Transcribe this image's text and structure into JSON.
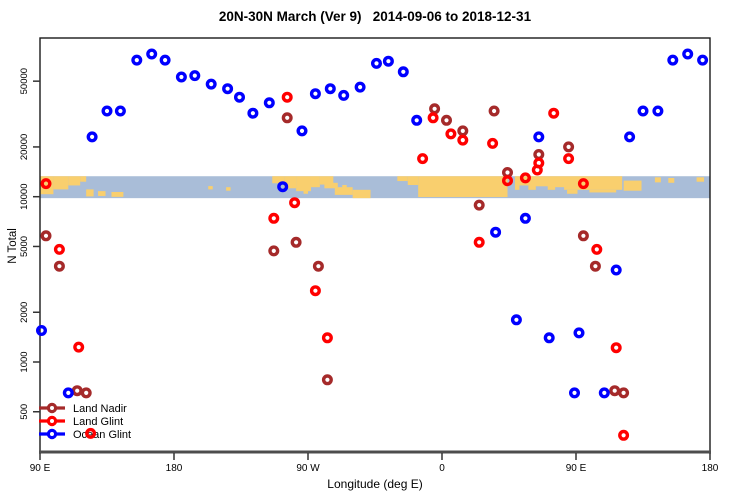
{
  "title": "20N-30N March (Ver 9)   2014-09-06 to 2018-12-31",
  "chart_data": {
    "type": "scatter",
    "title": "20N-30N March (Ver 9)   2014-09-06 to 2018-12-31",
    "xlabel": "Longitude (deg E)",
    "ylabel": "N Total",
    "x_axis": {
      "note": "longitude wraps eastward starting at 90E",
      "range": [
        90,
        540
      ],
      "ticks": [
        {
          "value": 90,
          "label": "90 E"
        },
        {
          "value": 180,
          "label": "180"
        },
        {
          "value": 270,
          "label": "90 W"
        },
        {
          "value": 360,
          "label": "0"
        },
        {
          "value": 450,
          "label": "90 E"
        },
        {
          "value": 540,
          "label": "180"
        }
      ]
    },
    "y_axis": {
      "scale": "log",
      "range": [
        300,
        90000
      ],
      "ticks": [
        500,
        1000,
        2000,
        5000,
        10000,
        20000,
        50000
      ]
    },
    "legend": {
      "position": "bottom-left",
      "entries": [
        "Land Nadir",
        "Land Glint",
        "Ocean Glint"
      ]
    },
    "series": [
      {
        "name": "Land Nadir",
        "color": "#A52A2A",
        "points": [
          [
            94,
            5800
          ],
          [
            103,
            3800
          ],
          [
            115,
            670
          ],
          [
            121,
            650
          ],
          [
            256,
            30000
          ],
          [
            247,
            4700
          ],
          [
            262,
            5300
          ],
          [
            277,
            3800
          ],
          [
            283,
            780
          ],
          [
            355,
            34000
          ],
          [
            363,
            29000
          ],
          [
            374,
            25000
          ],
          [
            385,
            8900
          ],
          [
            395,
            33000
          ],
          [
            404,
            14000
          ],
          [
            425,
            18000
          ],
          [
            445,
            20000
          ],
          [
            455,
            5800
          ],
          [
            463,
            3800
          ],
          [
            476,
            670
          ],
          [
            482,
            650
          ]
        ]
      },
      {
        "name": "Land Glint",
        "color": "#FF0000",
        "points": [
          [
            94,
            12000
          ],
          [
            103,
            4800
          ],
          [
            116,
            1230
          ],
          [
            124,
            370
          ],
          [
            256,
            40000
          ],
          [
            247,
            7400
          ],
          [
            261,
            9200
          ],
          [
            275,
            2700
          ],
          [
            283,
            1400
          ],
          [
            347,
            17000
          ],
          [
            354,
            30000
          ],
          [
            366,
            24000
          ],
          [
            374,
            22000
          ],
          [
            385,
            5300
          ],
          [
            394,
            21000
          ],
          [
            404,
            12500
          ],
          [
            416,
            13000
          ],
          [
            424,
            14500
          ],
          [
            425,
            16000
          ],
          [
            435,
            32000
          ],
          [
            445,
            17000
          ],
          [
            455,
            12000
          ],
          [
            464,
            4800
          ],
          [
            477,
            1220
          ],
          [
            482,
            360
          ]
        ]
      },
      {
        "name": "Ocean Glint",
        "color": "#0000FF",
        "points": [
          [
            125,
            23000
          ],
          [
            135,
            33000
          ],
          [
            144,
            33000
          ],
          [
            155,
            67000
          ],
          [
            165,
            73000
          ],
          [
            174,
            67000
          ],
          [
            185,
            53000
          ],
          [
            194,
            54000
          ],
          [
            205,
            48000
          ],
          [
            216,
            45000
          ],
          [
            224,
            40000
          ],
          [
            233,
            32000
          ],
          [
            244,
            37000
          ],
          [
            253,
            11500
          ],
          [
            266,
            25000
          ],
          [
            275,
            42000
          ],
          [
            285,
            45000
          ],
          [
            294,
            41000
          ],
          [
            305,
            46000
          ],
          [
            316,
            64000
          ],
          [
            324,
            66000
          ],
          [
            334,
            57000
          ],
          [
            343,
            29000
          ],
          [
            396,
            6100
          ],
          [
            416,
            7400
          ],
          [
            425,
            23000
          ],
          [
            477,
            3600
          ],
          [
            486,
            23000
          ],
          [
            495,
            33000
          ],
          [
            505,
            33000
          ],
          [
            515,
            67000
          ],
          [
            525,
            73000
          ],
          [
            535,
            67000
          ],
          [
            91,
            1550
          ],
          [
            109,
            650
          ],
          [
            410,
            1800
          ],
          [
            432,
            1400
          ],
          [
            452,
            1500
          ],
          [
            449,
            650
          ],
          [
            469,
            650
          ]
        ]
      }
    ],
    "map_band": {
      "value_top": 13300,
      "value_bottom": 9800,
      "ocean_color": "#A9BDD8",
      "land_color": "#F9CF6E",
      "land_rects": [
        [
          90,
          99,
          0,
          0.82
        ],
        [
          99,
          109,
          0,
          0.6
        ],
        [
          109,
          117,
          0,
          0.42
        ],
        [
          117,
          121,
          0,
          0.25
        ],
        [
          121,
          126,
          0.6,
          0.92
        ],
        [
          129,
          134,
          0.68,
          0.9
        ],
        [
          138,
          146,
          0.72,
          0.94
        ],
        [
          203,
          206,
          0.45,
          0.6
        ],
        [
          215,
          218,
          0.5,
          0.66
        ],
        [
          246,
          254,
          0,
          0.32
        ],
        [
          254,
          262,
          0,
          0.55
        ],
        [
          262,
          272,
          0,
          0.68
        ],
        [
          272,
          278,
          0,
          0.5
        ],
        [
          278,
          287,
          0,
          0.38
        ],
        [
          281,
          290,
          0.3,
          0.55
        ],
        [
          267,
          270,
          0.5,
          0.8
        ],
        [
          288,
          300,
          0.5,
          0.85
        ],
        [
          300,
          312,
          0.62,
          1
        ],
        [
          293,
          296,
          0.4,
          0.52
        ],
        [
          330,
          337,
          0,
          0.22
        ],
        [
          337,
          344,
          0,
          0.4
        ],
        [
          344,
          404,
          0,
          0.95
        ],
        [
          409,
          481,
          0,
          0.62
        ],
        [
          444,
          451,
          0.62,
          0.8
        ],
        [
          459,
          477,
          0.62,
          0.74
        ],
        [
          482,
          494,
          0.2,
          0.66
        ],
        [
          503,
          507,
          0.05,
          0.28
        ],
        [
          512,
          516,
          0.08,
          0.3
        ],
        [
          531,
          536,
          0.05,
          0.25
        ]
      ],
      "ocean_notches": [
        [
          412,
          418,
          0.42,
          0.66
        ],
        [
          423,
          431,
          0.46,
          0.66
        ],
        [
          436,
          442,
          0.5,
          0.66
        ]
      ]
    }
  }
}
